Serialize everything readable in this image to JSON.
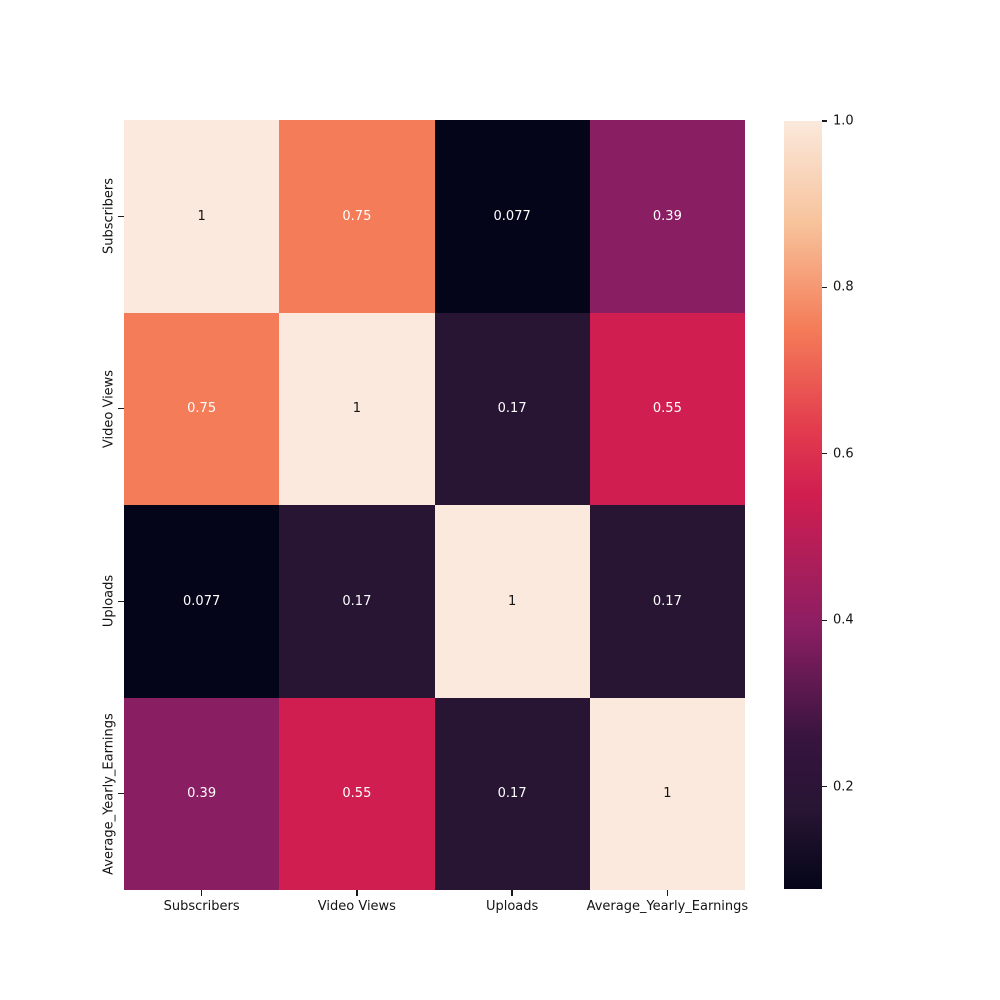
{
  "figure": {
    "background": "#ffffff",
    "text_color": "#141414"
  },
  "chart_data": {
    "type": "heatmap",
    "title": "",
    "xlabel": "",
    "ylabel": "",
    "categories": [
      "Subscribers",
      "Video Views",
      "Uploads",
      "Average_Yearly_Earnings"
    ],
    "matrix": [
      [
        1,
        0.75,
        0.077,
        0.39
      ],
      [
        0.75,
        1,
        0.17,
        0.55
      ],
      [
        0.077,
        0.17,
        1,
        0.17
      ],
      [
        0.39,
        0.55,
        0.17,
        1
      ]
    ],
    "cell_labels": [
      [
        "1",
        "0.75",
        "0.077",
        "0.39"
      ],
      [
        "0.75",
        "1",
        "0.17",
        "0.55"
      ],
      [
        "0.077",
        "0.17",
        "1",
        "0.17"
      ],
      [
        "0.39",
        "0.55",
        "0.17",
        "1"
      ]
    ],
    "colormap": "rocket",
    "vmin": 0.077,
    "vmax": 1.0,
    "annotations_on": true,
    "grid_off": true,
    "legend_position": "colorbar-right",
    "cell_color_map": {
      "1": {
        "bg": "#FAE9DC",
        "fg": "#141414"
      },
      "0.75": {
        "bg": "#F47C58",
        "fg": "#FFFFFF"
      },
      "0.55": {
        "bg": "#D01E50",
        "fg": "#FFFFFF"
      },
      "0.39": {
        "bg": "#8A1E63",
        "fg": "#FFFFFF"
      },
      "0.17": {
        "bg": "#271533",
        "fg": "#FFFFFF"
      },
      "0.077": {
        "bg": "#040518",
        "fg": "#FFFFFF"
      }
    },
    "colorbar": {
      "tick_labels": [
        "1.0",
        "0.8",
        "0.6",
        "0.4",
        "0.2"
      ],
      "tick_values": [
        1.0,
        0.8,
        0.6,
        0.4,
        0.2
      ],
      "gradient_stops_bottom_to_top": [
        {
          "pos": 0.0,
          "color": "#040518"
        },
        {
          "pos": 10.1,
          "color": "#271533"
        },
        {
          "pos": 19.4,
          "color": "#36143E"
        },
        {
          "pos": 33.9,
          "color": "#8A1E63"
        },
        {
          "pos": 51.2,
          "color": "#D01E50"
        },
        {
          "pos": 60.0,
          "color": "#E33C4E"
        },
        {
          "pos": 72.9,
          "color": "#F47C58"
        },
        {
          "pos": 86.5,
          "color": "#F7C29A"
        },
        {
          "pos": 100.0,
          "color": "#FAE9DC"
        }
      ]
    }
  }
}
